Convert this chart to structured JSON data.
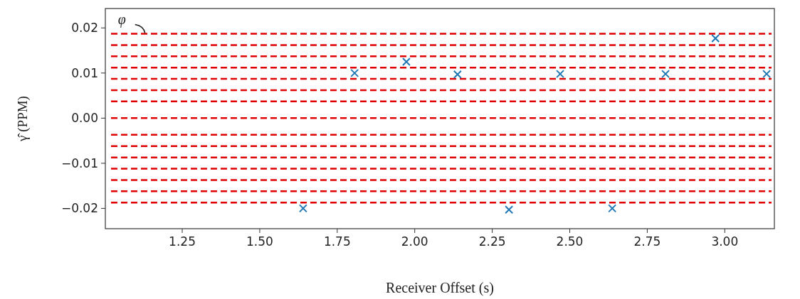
{
  "chart_data": {
    "type": "scatter",
    "xlabel": "Receiver Offset (s)",
    "ylabel": "γ̂ (PPM)",
    "x": [
      1.64,
      1.806,
      1.973,
      2.138,
      2.304,
      2.469,
      2.637,
      2.809,
      2.97,
      3.135
    ],
    "series": [
      {
        "color": "#1f77b4",
        "values": [
          -0.02,
          0.01,
          0.0125,
          0.0097,
          -0.0203,
          0.0098,
          -0.02,
          0.0098,
          0.0177,
          0.0098
        ]
      }
    ],
    "marker": "cross",
    "grid": false,
    "xlim": [
      1.002,
      3.16
    ],
    "ylim": [
      -0.0245,
      0.0243
    ],
    "xticks": [
      {
        "value": 1.25,
        "label": "1.25"
      },
      {
        "value": 1.5,
        "label": "1.50"
      },
      {
        "value": 1.75,
        "label": "1.75"
      },
      {
        "value": 2,
        "label": "2.00"
      },
      {
        "value": 2.25,
        "label": "2.25"
      },
      {
        "value": 2.5,
        "label": "2.50"
      },
      {
        "value": 2.75,
        "label": "2.75"
      },
      {
        "value": 3,
        "label": "3.00"
      }
    ],
    "yticks": [
      {
        "value": -0.02,
        "label": "−0.02"
      },
      {
        "value": -0.01,
        "label": "−0.01"
      },
      {
        "value": 0,
        "label": "0.00"
      },
      {
        "value": 0.01,
        "label": "0.01"
      },
      {
        "value": 0.02,
        "label": "0.02"
      }
    ],
    "ref_lines": [
      {
        "axis": "y",
        "value": 0.0187,
        "color": "#e00000",
        "line_style": "dashed"
      },
      {
        "axis": "y",
        "value": 0.0162,
        "color": "#e00000",
        "line_style": "dashed"
      },
      {
        "axis": "y",
        "value": 0.0137,
        "color": "#e00000",
        "line_style": "dashed"
      },
      {
        "axis": "y",
        "value": 0.0112,
        "color": "#e00000",
        "line_style": "dashed"
      },
      {
        "axis": "y",
        "value": 0.0087,
        "color": "#e00000",
        "line_style": "dashed"
      },
      {
        "axis": "y",
        "value": 0.0062,
        "color": "#e00000",
        "line_style": "dashed"
      },
      {
        "axis": "y",
        "value": 0.0037,
        "color": "#e00000",
        "line_style": "dashed"
      },
      {
        "axis": "y",
        "value": 0,
        "color": "#e00000",
        "line_style": "dashed"
      },
      {
        "axis": "y",
        "value": -0.0037,
        "color": "#e00000",
        "line_style": "dashed"
      },
      {
        "axis": "y",
        "value": -0.0062,
        "color": "#e00000",
        "line_style": "dashed"
      },
      {
        "axis": "y",
        "value": -0.0087,
        "color": "#e00000",
        "line_style": "dashed"
      },
      {
        "axis": "y",
        "value": -0.0112,
        "color": "#e00000",
        "line_style": "dashed"
      },
      {
        "axis": "y",
        "value": -0.0137,
        "color": "#e00000",
        "line_style": "dashed"
      },
      {
        "axis": "y",
        "value": -0.0162,
        "color": "#e00000",
        "line_style": "dashed"
      },
      {
        "axis": "y",
        "value": -0.0187,
        "color": "#e00000",
        "line_style": "dashed"
      }
    ],
    "annotations": [
      {
        "text": "φ",
        "x": 1.13,
        "y": 0.0187
      }
    ]
  }
}
